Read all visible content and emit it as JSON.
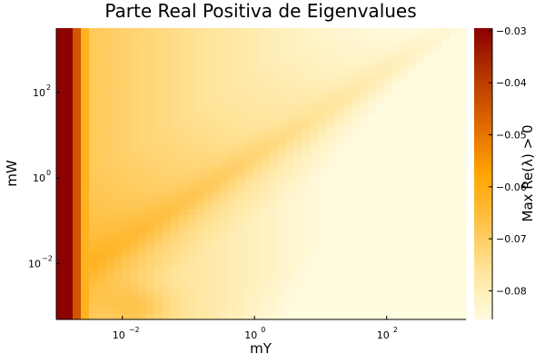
{
  "chart_data": {
    "type": "heatmap",
    "title": "Parte Real Positiva de Eigenvalues",
    "xlabel": "mY",
    "ylabel": "mW",
    "x_scale": "log10",
    "y_scale": "log10",
    "xlim_log10": [
      -3.0,
      3.2
    ],
    "ylim_log10": [
      -3.3,
      3.5
    ],
    "x_ticks": [
      {
        "log10": -2,
        "label": "10",
        "exp": "−2"
      },
      {
        "log10": 0,
        "label": "10",
        "exp": "0"
      },
      {
        "log10": 2,
        "label": "10",
        "exp": "2"
      }
    ],
    "y_ticks": [
      {
        "log10": -2,
        "label": "10",
        "exp": "−2"
      },
      {
        "log10": 0,
        "label": "10",
        "exp": "0"
      },
      {
        "log10": 2,
        "label": "10",
        "exp": "2"
      }
    ],
    "colorbar": {
      "label": "Max Re(λ) > 0",
      "range": [
        -0.0855,
        -0.0295
      ],
      "ticks": [
        {
          "value": -0.03,
          "label": "−0.03"
        },
        {
          "value": -0.04,
          "label": "−0.04"
        },
        {
          "value": -0.05,
          "label": "−0.05"
        },
        {
          "value": -0.06,
          "label": "−0.06"
        },
        {
          "value": -0.07,
          "label": "−0.07"
        },
        {
          "value": -0.08,
          "label": "−0.08"
        }
      ],
      "colormap": [
        "#fffbdf",
        "#ffe49a",
        "#ffc043",
        "#ffa500",
        "#e06800",
        "#b33500",
        "#8b0000"
      ]
    },
    "grid": {
      "nx": 50,
      "ny": 50,
      "description": "Max real part of eigenvalue on a log-log (mY, mW) grid; darkest (≈ -0.03) for mY < 3e-3, orange ridge along mW ≈ 3·mY, palest (≈ -0.085) for large mY"
    }
  }
}
